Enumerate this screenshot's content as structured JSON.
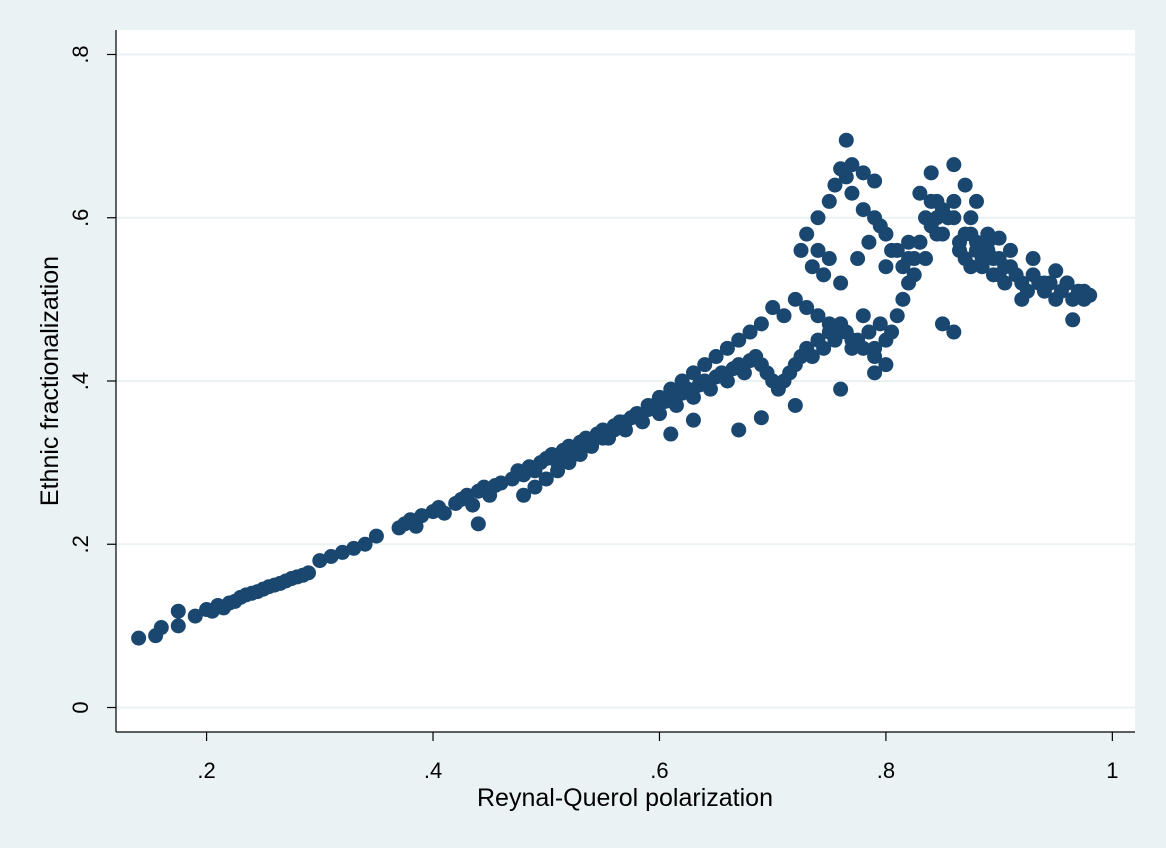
{
  "chart_data": {
    "type": "scatter",
    "title": "",
    "xlabel": "Reynal-Querol polarization",
    "ylabel": "Ethnic fractionalization",
    "xlim": [
      0.12,
      1.02
    ],
    "ylim": [
      -0.03,
      0.83
    ],
    "x_ticks": [
      0.2,
      0.4,
      0.6,
      0.8,
      1.0
    ],
    "x_tick_labels": [
      ".2",
      ".4",
      ".6",
      ".8",
      "1"
    ],
    "y_ticks": [
      0,
      0.2,
      0.4,
      0.6,
      0.8
    ],
    "y_tick_labels": [
      "0",
      ".2",
      ".4",
      ".6",
      ".8"
    ],
    "grid": {
      "horizontal": true,
      "vertical": false
    },
    "legend": "none",
    "colors": {
      "marker": "#1a476f",
      "background": "#eaf2f3",
      "plot_bg": "#ffffff",
      "grid": "#eaf2f3"
    },
    "series": [
      {
        "x": [
          0.14,
          0.155,
          0.16,
          0.175,
          0.175,
          0.19,
          0.2,
          0.205,
          0.21,
          0.215,
          0.22,
          0.225,
          0.23,
          0.235,
          0.24,
          0.245,
          0.25,
          0.255,
          0.26,
          0.265,
          0.27,
          0.275,
          0.28,
          0.285,
          0.29,
          0.3,
          0.31,
          0.32,
          0.33,
          0.34,
          0.35,
          0.37,
          0.375,
          0.38,
          0.385,
          0.39,
          0.4,
          0.405,
          0.41,
          0.42,
          0.425,
          0.43,
          0.435,
          0.44,
          0.445,
          0.45,
          0.455,
          0.46,
          0.47,
          0.475,
          0.48,
          0.485,
          0.49,
          0.495,
          0.5,
          0.505,
          0.51,
          0.515,
          0.52,
          0.525,
          0.53,
          0.535,
          0.54,
          0.545,
          0.55,
          0.555,
          0.56,
          0.565,
          0.57,
          0.575,
          0.58,
          0.585,
          0.59,
          0.595,
          0.6,
          0.605,
          0.61,
          0.615,
          0.62,
          0.625,
          0.63,
          0.635,
          0.64,
          0.645,
          0.65,
          0.655,
          0.66,
          0.665,
          0.67,
          0.675,
          0.68,
          0.685,
          0.69,
          0.695,
          0.7,
          0.705,
          0.71,
          0.715,
          0.72,
          0.725,
          0.73,
          0.735,
          0.74,
          0.745,
          0.75,
          0.755,
          0.76,
          0.765,
          0.77,
          0.775,
          0.78,
          0.785,
          0.79,
          0.795,
          0.8,
          0.805,
          0.81,
          0.815,
          0.82,
          0.825,
          0.83,
          0.835,
          0.84,
          0.845,
          0.85,
          0.855,
          0.86,
          0.865,
          0.87,
          0.875,
          0.88,
          0.885,
          0.89,
          0.895,
          0.9,
          0.905,
          0.91,
          0.915,
          0.92,
          0.925,
          0.93,
          0.935,
          0.94,
          0.945,
          0.95,
          0.955,
          0.96,
          0.965,
          0.97,
          0.975,
          0.98,
          0.73,
          0.74,
          0.75,
          0.755,
          0.76,
          0.765,
          0.77,
          0.78,
          0.79,
          0.8,
          0.81,
          0.82,
          0.83,
          0.84,
          0.85,
          0.86,
          0.87,
          0.88,
          0.89,
          0.9,
          0.725,
          0.735,
          0.745,
          0.76,
          0.775,
          0.785,
          0.795,
          0.805,
          0.815,
          0.825,
          0.835,
          0.845,
          0.855,
          0.865,
          0.875,
          0.885,
          0.895,
          0.905,
          0.72,
          0.73,
          0.74,
          0.75,
          0.76,
          0.77,
          0.78,
          0.79,
          0.8,
          0.71,
          0.7,
          0.69,
          0.68,
          0.67,
          0.66,
          0.65,
          0.64,
          0.63,
          0.62,
          0.61,
          0.6,
          0.59,
          0.58,
          0.57,
          0.56,
          0.55,
          0.54,
          0.53,
          0.52,
          0.51,
          0.5,
          0.49,
          0.48,
          0.44,
          0.61,
          0.63,
          0.67,
          0.69,
          0.72,
          0.76,
          0.79,
          0.85,
          0.86,
          0.92,
          0.965,
          0.77,
          0.78,
          0.765,
          0.79,
          0.84,
          0.87,
          0.88,
          0.86,
          0.83,
          0.9,
          0.93,
          0.95,
          0.96,
          0.74,
          0.75,
          0.8,
          0.82,
          0.845,
          0.875,
          0.89,
          0.91,
          0.94,
          0.975
        ],
        "y": [
          0.085,
          0.088,
          0.098,
          0.1,
          0.118,
          0.112,
          0.12,
          0.118,
          0.125,
          0.122,
          0.128,
          0.13,
          0.135,
          0.138,
          0.14,
          0.142,
          0.145,
          0.148,
          0.15,
          0.152,
          0.155,
          0.158,
          0.16,
          0.162,
          0.165,
          0.18,
          0.185,
          0.19,
          0.195,
          0.2,
          0.21,
          0.22,
          0.225,
          0.23,
          0.222,
          0.235,
          0.24,
          0.245,
          0.238,
          0.25,
          0.255,
          0.26,
          0.248,
          0.265,
          0.27,
          0.26,
          0.272,
          0.275,
          0.28,
          0.29,
          0.285,
          0.295,
          0.29,
          0.3,
          0.305,
          0.31,
          0.3,
          0.315,
          0.32,
          0.31,
          0.325,
          0.33,
          0.32,
          0.335,
          0.34,
          0.33,
          0.345,
          0.35,
          0.34,
          0.355,
          0.36,
          0.35,
          0.365,
          0.37,
          0.36,
          0.375,
          0.38,
          0.37,
          0.385,
          0.39,
          0.38,
          0.395,
          0.4,
          0.39,
          0.405,
          0.41,
          0.4,
          0.415,
          0.42,
          0.41,
          0.425,
          0.43,
          0.42,
          0.41,
          0.4,
          0.39,
          0.4,
          0.41,
          0.42,
          0.43,
          0.44,
          0.43,
          0.45,
          0.44,
          0.46,
          0.45,
          0.47,
          0.46,
          0.44,
          0.45,
          0.48,
          0.46,
          0.44,
          0.47,
          0.45,
          0.46,
          0.48,
          0.5,
          0.52,
          0.55,
          0.57,
          0.6,
          0.62,
          0.6,
          0.58,
          0.6,
          0.62,
          0.57,
          0.55,
          0.58,
          0.56,
          0.54,
          0.57,
          0.55,
          0.53,
          0.52,
          0.54,
          0.53,
          0.52,
          0.51,
          0.53,
          0.52,
          0.51,
          0.52,
          0.5,
          0.51,
          0.52,
          0.5,
          0.51,
          0.5,
          0.505,
          0.58,
          0.6,
          0.62,
          0.64,
          0.66,
          0.65,
          0.63,
          0.61,
          0.6,
          0.58,
          0.56,
          0.55,
          0.57,
          0.59,
          0.61,
          0.6,
          0.58,
          0.57,
          0.56,
          0.55,
          0.56,
          0.54,
          0.53,
          0.52,
          0.55,
          0.57,
          0.59,
          0.56,
          0.54,
          0.53,
          0.55,
          0.58,
          0.6,
          0.56,
          0.54,
          0.55,
          0.53,
          0.54,
          0.5,
          0.49,
          0.48,
          0.47,
          0.46,
          0.45,
          0.44,
          0.43,
          0.42,
          0.48,
          0.49,
          0.47,
          0.46,
          0.45,
          0.44,
          0.43,
          0.42,
          0.41,
          0.4,
          0.39,
          0.38,
          0.37,
          0.36,
          0.35,
          0.34,
          0.33,
          0.32,
          0.31,
          0.3,
          0.29,
          0.28,
          0.27,
          0.26,
          0.225,
          0.335,
          0.352,
          0.34,
          0.355,
          0.37,
          0.39,
          0.41,
          0.47,
          0.46,
          0.5,
          0.475,
          0.665,
          0.655,
          0.695,
          0.645,
          0.655,
          0.64,
          0.62,
          0.665,
          0.63,
          0.575,
          0.55,
          0.535,
          0.52,
          0.56,
          0.55,
          0.54,
          0.57,
          0.62,
          0.6,
          0.58,
          0.56,
          0.52,
          0.51
        ]
      }
    ]
  }
}
